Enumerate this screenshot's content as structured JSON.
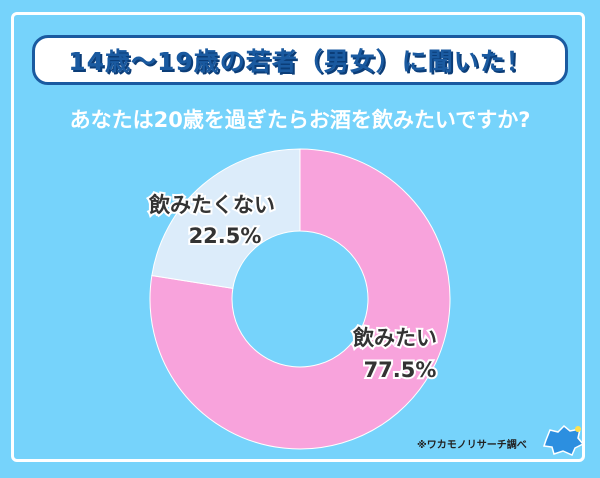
{
  "title": "14歳～19歳の若者（男女）に聞いた！",
  "chart_data": {
    "type": "pie",
    "title": "あなたは20歳を過ぎたらお酒を飲みたいですか?",
    "donut": true,
    "slices": [
      {
        "label": "飲みたい",
        "value": 77.5,
        "value_label": "77.5%",
        "color": "#f8a3dc"
      },
      {
        "label": "飲みたくない",
        "value": 22.5,
        "value_label": "22.5%",
        "color": "#dcecfa"
      }
    ]
  },
  "source": "※ワカモノリサーチ調べ",
  "logo_text": "ワカモノリサーチ",
  "colors": {
    "background": "#76d3fb",
    "title_border": "#1a5aa0"
  }
}
